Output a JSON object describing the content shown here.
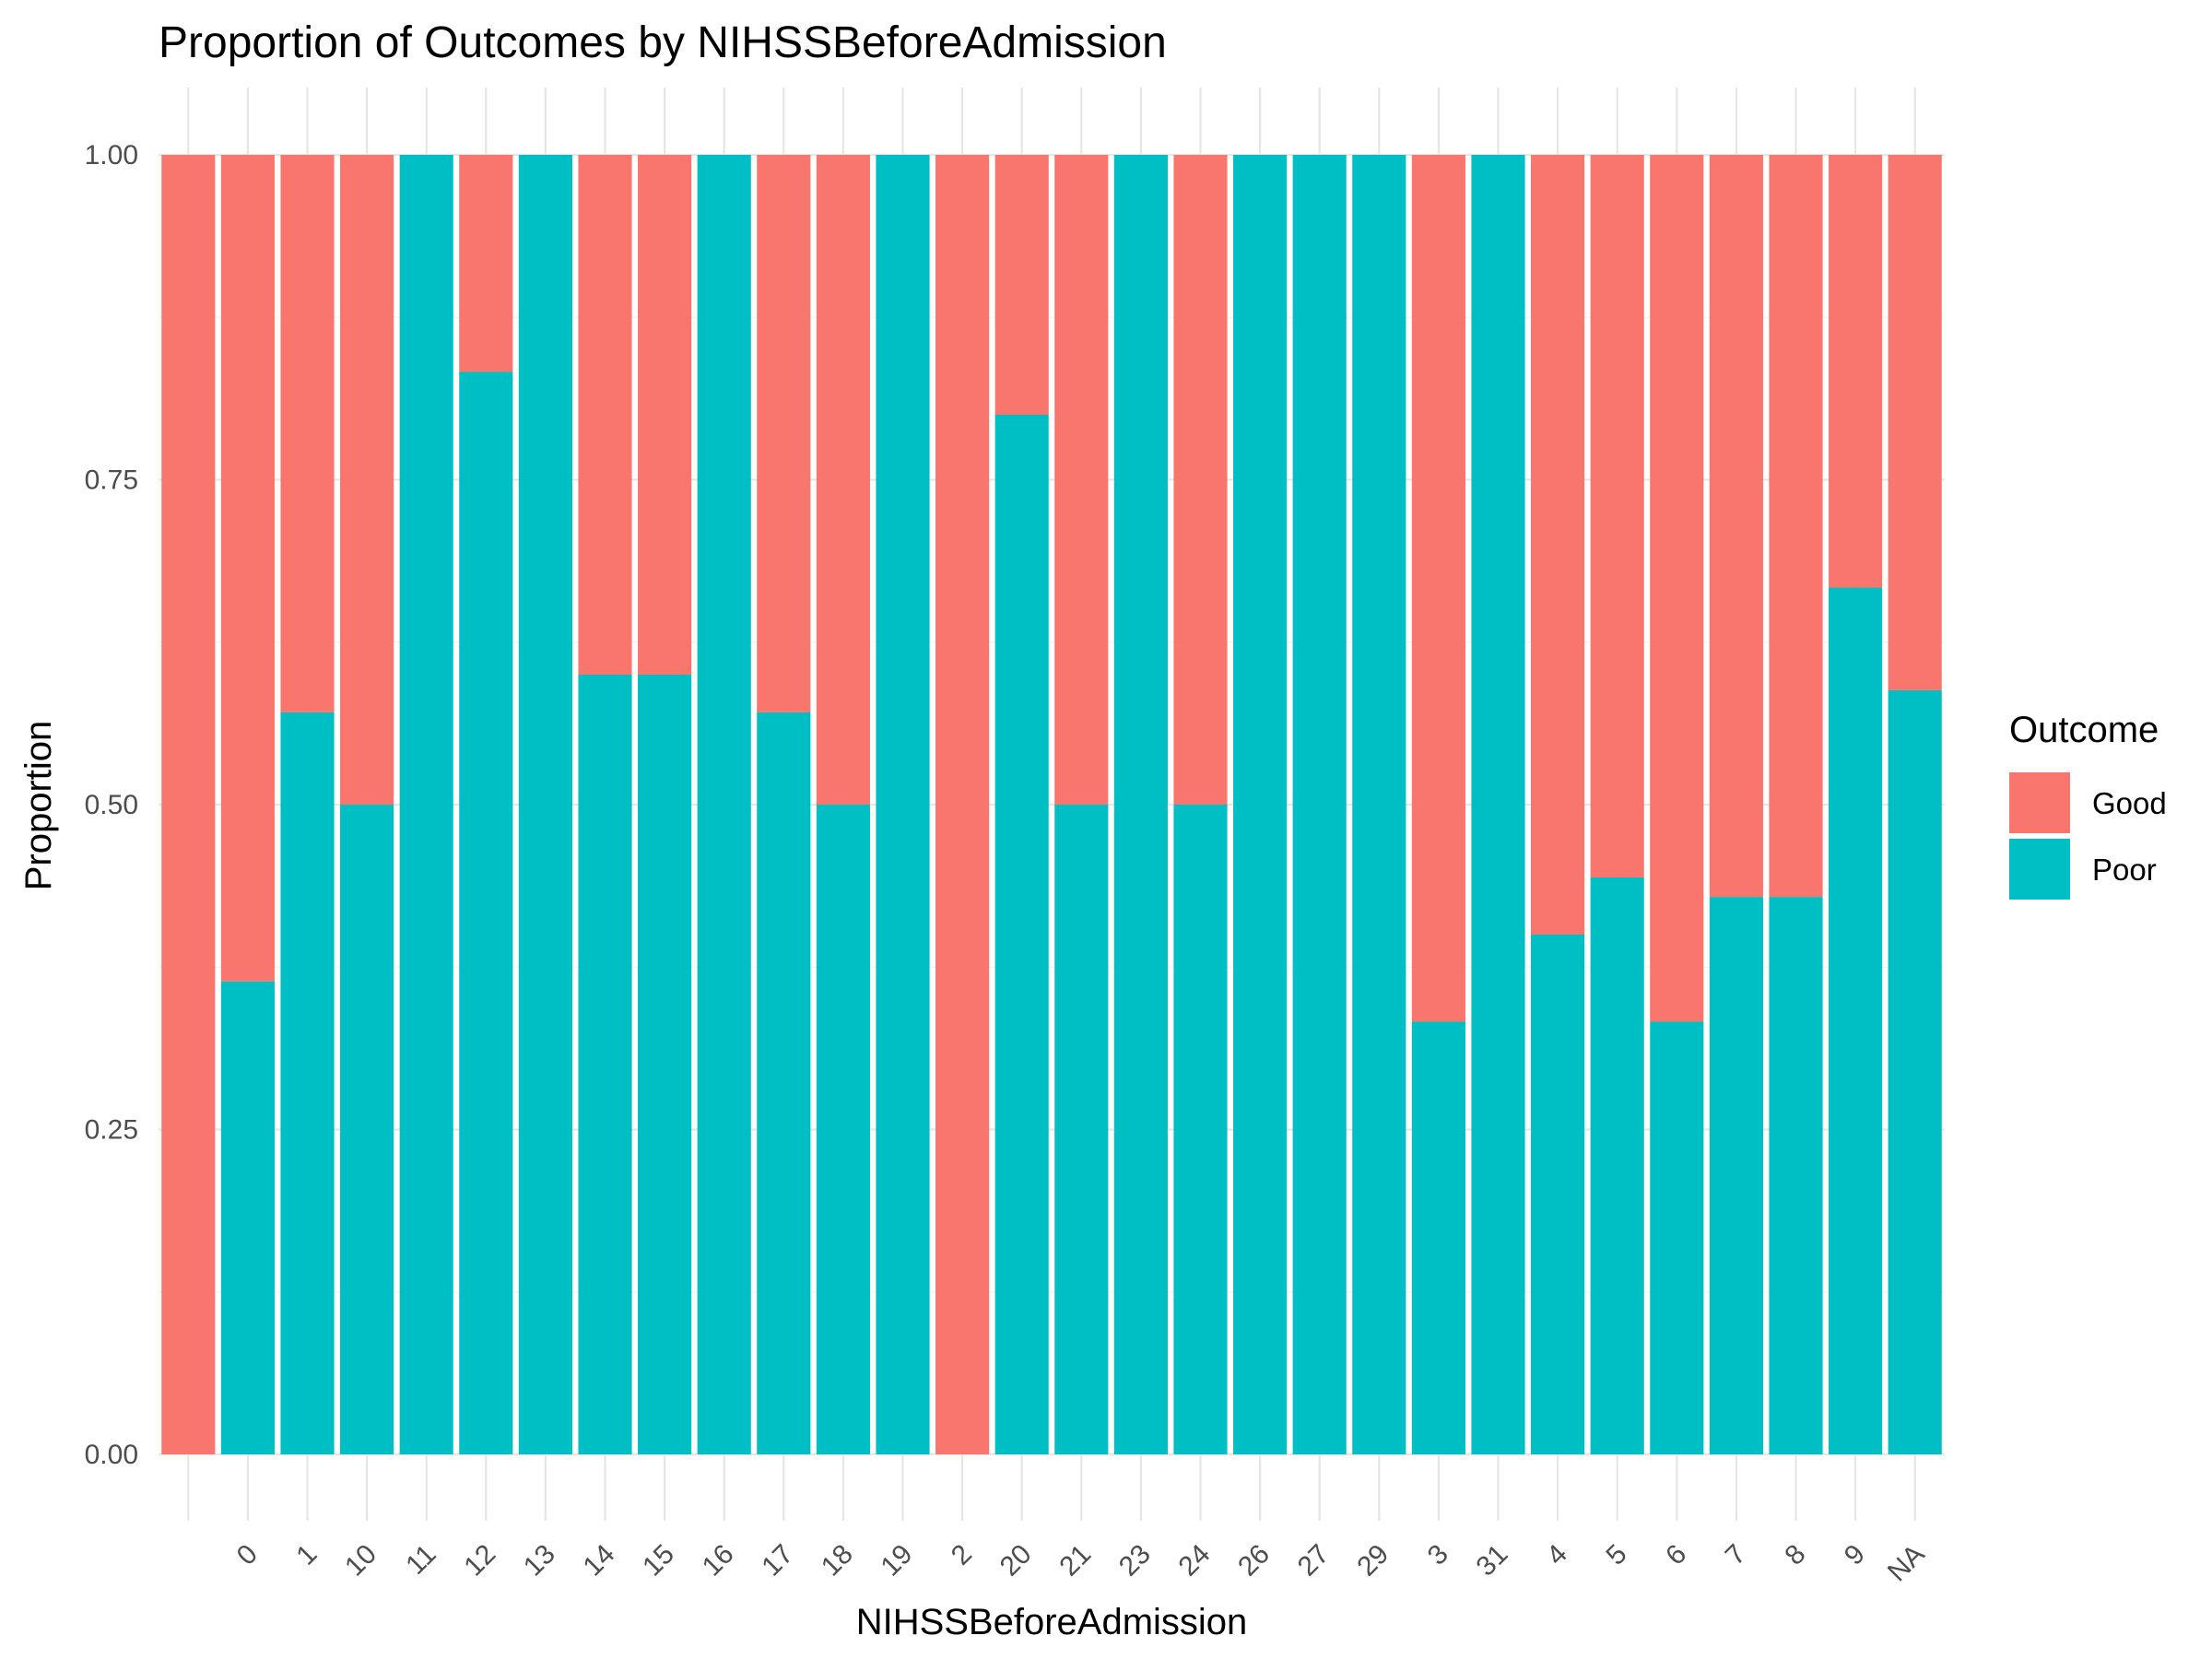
{
  "chart_data": {
    "type": "bar",
    "stacked": true,
    "title": "Proportion of Outcomes by NIHSSBeforeAdmission",
    "xlabel": "NIHSSBeforeAdmission",
    "ylabel": "Proportion",
    "ylim": [
      0,
      1
    ],
    "yticks": [
      "0.00",
      "0.25",
      "0.50",
      "0.75",
      "1.00"
    ],
    "categories": [
      "",
      "0",
      "1",
      "10",
      "11",
      "12",
      "13",
      "14",
      "15",
      "16",
      "17",
      "18",
      "19",
      "2",
      "20",
      "21",
      "23",
      "24",
      "26",
      "27",
      "29",
      "3",
      "31",
      "4",
      "5",
      "6",
      "7",
      "8",
      "9",
      "NA"
    ],
    "series": [
      {
        "name": "Good",
        "color": "#F8766D",
        "values": [
          1.0,
          0.636,
          0.429,
          0.5,
          0.0,
          0.167,
          0.0,
          0.4,
          0.4,
          0.0,
          0.429,
          0.5,
          0.0,
          1.0,
          0.2,
          0.5,
          0.0,
          0.5,
          0.0,
          0.0,
          0.0,
          0.667,
          0.0,
          0.6,
          0.556,
          0.667,
          0.571,
          0.571,
          0.333,
          0.412
        ]
      },
      {
        "name": "Poor",
        "color": "#00BFC4",
        "values": [
          0.0,
          0.364,
          0.571,
          0.5,
          1.0,
          0.833,
          1.0,
          0.6,
          0.6,
          1.0,
          0.571,
          0.5,
          1.0,
          0.0,
          0.8,
          0.5,
          1.0,
          0.5,
          1.0,
          1.0,
          1.0,
          0.333,
          1.0,
          0.4,
          0.444,
          0.333,
          0.429,
          0.429,
          0.667,
          0.588
        ]
      }
    ],
    "legend": {
      "title": "Outcome",
      "position": "right"
    },
    "grid": true
  }
}
